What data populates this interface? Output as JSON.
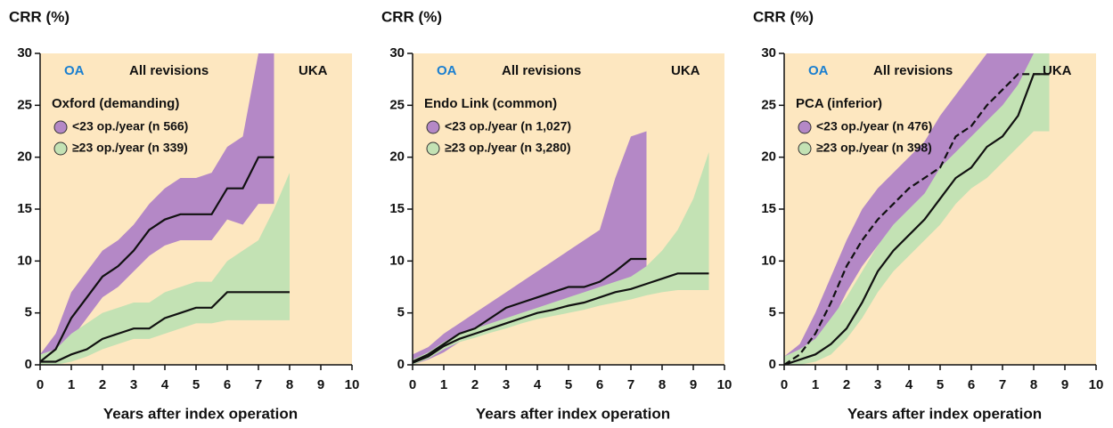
{
  "chart_data": [
    {
      "type": "line",
      "title": "CRR (%)",
      "xlabel": "Years after index operation",
      "xlim": [
        0,
        10
      ],
      "ylim": [
        0,
        30
      ],
      "xticks": [
        0,
        1,
        2,
        3,
        4,
        5,
        6,
        7,
        8,
        9,
        10
      ],
      "yticks": [
        0,
        5,
        10,
        15,
        20,
        25,
        30
      ],
      "annotations": [
        {
          "text": "OA",
          "color": "#1a7fd0"
        },
        {
          "text": "All revisions",
          "color": "#111111"
        },
        {
          "text": "UKA",
          "color": "#111111"
        }
      ],
      "legend_title": "Oxford (demanding)",
      "series": [
        {
          "name": "<23 op./year (n 566)",
          "color": "#111111",
          "band_color": "#b488c6",
          "dash": false,
          "x": [
            0,
            0.5,
            1,
            1.5,
            2,
            2.5,
            3,
            3.5,
            4,
            4.5,
            5,
            5.5,
            6,
            6.5,
            7,
            7.5
          ],
          "values": [
            0.3,
            1.5,
            4.5,
            6.5,
            8.5,
            9.5,
            11,
            13,
            14,
            14.5,
            14.5,
            14.5,
            17,
            17,
            20,
            20
          ],
          "lower": [
            0,
            0.5,
            2.5,
            4.5,
            6.5,
            7.5,
            9,
            10.5,
            11.5,
            12,
            12,
            12,
            14,
            13.5,
            15.5,
            15.5
          ],
          "upper": [
            1,
            3,
            7,
            9,
            11,
            12,
            13.5,
            15.5,
            17,
            18,
            18,
            18.5,
            21,
            22,
            30,
            30
          ]
        },
        {
          "name": "≥23 op./year (n 339)",
          "color": "#111111",
          "band_color": "#c3e2b4",
          "dash": false,
          "x": [
            0,
            0.5,
            1,
            1.5,
            2,
            2.5,
            3,
            3.5,
            4,
            4.5,
            5,
            5.5,
            6,
            6.5,
            7,
            7.5,
            8
          ],
          "values": [
            0.3,
            0.3,
            1,
            1.5,
            2.5,
            3,
            3.5,
            3.5,
            4.5,
            5,
            5.5,
            5.5,
            7,
            7,
            7,
            7,
            7
          ],
          "lower": [
            0,
            0,
            0.3,
            0.8,
            1.5,
            2,
            2.5,
            2.5,
            3,
            3.5,
            4,
            4,
            4.3,
            4.3,
            4.3,
            4.3,
            4.3
          ],
          "upper": [
            1,
            1.5,
            3,
            4,
            5,
            5.5,
            6,
            6,
            7,
            7.5,
            8,
            8,
            10,
            11,
            12,
            15,
            18.5
          ]
        }
      ]
    },
    {
      "type": "line",
      "title": "CRR (%)",
      "xlabel": "Years after index operation",
      "xlim": [
        0,
        10
      ],
      "ylim": [
        0,
        30
      ],
      "xticks": [
        0,
        1,
        2,
        3,
        4,
        5,
        6,
        7,
        8,
        9,
        10
      ],
      "yticks": [
        0,
        5,
        10,
        15,
        20,
        25,
        30
      ],
      "annotations": [
        {
          "text": "OA",
          "color": "#1a7fd0"
        },
        {
          "text": "All revisions",
          "color": "#111111"
        },
        {
          "text": "UKA",
          "color": "#111111"
        }
      ],
      "legend_title": "Endo Link (common)",
      "series": [
        {
          "name": "<23 op./year (n 1,027)",
          "color": "#111111",
          "band_color": "#b488c6",
          "dash": false,
          "x": [
            0,
            0.5,
            1,
            1.5,
            2,
            2.5,
            3,
            3.5,
            4,
            4.5,
            5,
            5.5,
            6,
            6.5,
            7,
            7.5
          ],
          "values": [
            0.3,
            1,
            2,
            3,
            3.5,
            4.5,
            5.5,
            6,
            6.5,
            7,
            7.5,
            7.5,
            8,
            9,
            10.2,
            10.2
          ],
          "lower": [
            0,
            0.5,
            1.2,
            2.2,
            2.7,
            3.5,
            4.3,
            4.8,
            5.3,
            5.5,
            6,
            6,
            6.3,
            7,
            7.5,
            7.5
          ],
          "upper": [
            1,
            1.7,
            3,
            4,
            5,
            6,
            7,
            8,
            9,
            10,
            11,
            12,
            13,
            18,
            22,
            22.5
          ]
        },
        {
          "name": "≥23 op./year (n 3,280)",
          "color": "#111111",
          "band_color": "#c3e2b4",
          "dash": false,
          "x": [
            0,
            0.5,
            1,
            1.5,
            2,
            2.5,
            3,
            3.5,
            4,
            4.5,
            5,
            5.5,
            6,
            6.5,
            7,
            7.5,
            8,
            8.5,
            9,
            9.5
          ],
          "values": [
            0.2,
            0.8,
            1.8,
            2.5,
            3,
            3.5,
            4,
            4.5,
            5,
            5.3,
            5.7,
            6,
            6.5,
            7,
            7.3,
            7.8,
            8.3,
            8.8,
            8.8,
            8.8
          ],
          "lower": [
            0,
            0.6,
            1.5,
            2.2,
            2.6,
            3.1,
            3.5,
            4,
            4.4,
            4.7,
            5,
            5.3,
            5.7,
            6,
            6.3,
            6.7,
            7,
            7.2,
            7.2,
            7.2
          ],
          "upper": [
            0.5,
            1.2,
            2.2,
            3,
            3.5,
            4,
            4.5,
            5,
            5.5,
            6,
            6.5,
            7,
            7.5,
            8,
            8.5,
            9.5,
            11,
            13,
            16,
            20.5
          ]
        }
      ]
    },
    {
      "type": "line",
      "title": "CRR (%)",
      "xlabel": "Years after index operation",
      "xlim": [
        0,
        10
      ],
      "ylim": [
        0,
        30
      ],
      "xticks": [
        0,
        1,
        2,
        3,
        4,
        5,
        6,
        7,
        8,
        9,
        10
      ],
      "yticks": [
        0,
        5,
        10,
        15,
        20,
        25,
        30
      ],
      "annotations": [
        {
          "text": "OA",
          "color": "#1a7fd0"
        },
        {
          "text": "All revisions",
          "color": "#111111"
        },
        {
          "text": "UKA",
          "color": "#111111"
        }
      ],
      "legend_title": "PCA (inferior)",
      "series": [
        {
          "name": "<23 op./year (n 476)",
          "color": "#111111",
          "band_color": "#b488c6",
          "dash": true,
          "x": [
            0,
            0.5,
            1,
            1.5,
            2,
            2.5,
            3,
            3.5,
            4,
            4.5,
            5,
            5.5,
            6,
            6.5,
            7,
            7.5,
            8,
            8.5
          ],
          "values": [
            0,
            1,
            3,
            6,
            9.5,
            12,
            14,
            15.5,
            17,
            18,
            19,
            22,
            23,
            25,
            26.5,
            28,
            28,
            28
          ],
          "lower": [
            0,
            0.5,
            1.5,
            4,
            7,
            9.5,
            11.5,
            13,
            14.5,
            15.5,
            16.5,
            19,
            20,
            21.5,
            23,
            23,
            23,
            23
          ],
          "upper": [
            0.8,
            2,
            5,
            8.5,
            12,
            15,
            17,
            18.5,
            20,
            21.5,
            24,
            26,
            28,
            30,
            30,
            30,
            30,
            30
          ]
        },
        {
          "name": "≥23 op./year (n 398)",
          "color": "#111111",
          "band_color": "#c3e2b4",
          "dash": false,
          "x": [
            0,
            0.5,
            1,
            1.5,
            2,
            2.5,
            3,
            3.5,
            4,
            4.5,
            5,
            5.5,
            6,
            6.5,
            7,
            7.5,
            8,
            8.5
          ],
          "values": [
            0,
            0.5,
            1,
            2,
            3.5,
            6,
            9,
            11,
            12.5,
            14,
            16,
            18,
            19,
            21,
            22,
            24,
            28,
            28
          ],
          "lower": [
            0,
            0,
            0.3,
            1,
            2.5,
            4.5,
            7,
            9,
            10.5,
            12,
            13.5,
            15.5,
            17,
            18,
            19.5,
            21,
            22.5,
            22.5
          ],
          "upper": [
            0.8,
            1.5,
            2.5,
            4.5,
            6.5,
            9,
            11.5,
            13.5,
            15,
            16.5,
            19,
            20.5,
            22,
            23.5,
            25,
            27,
            30,
            30
          ]
        }
      ]
    }
  ]
}
